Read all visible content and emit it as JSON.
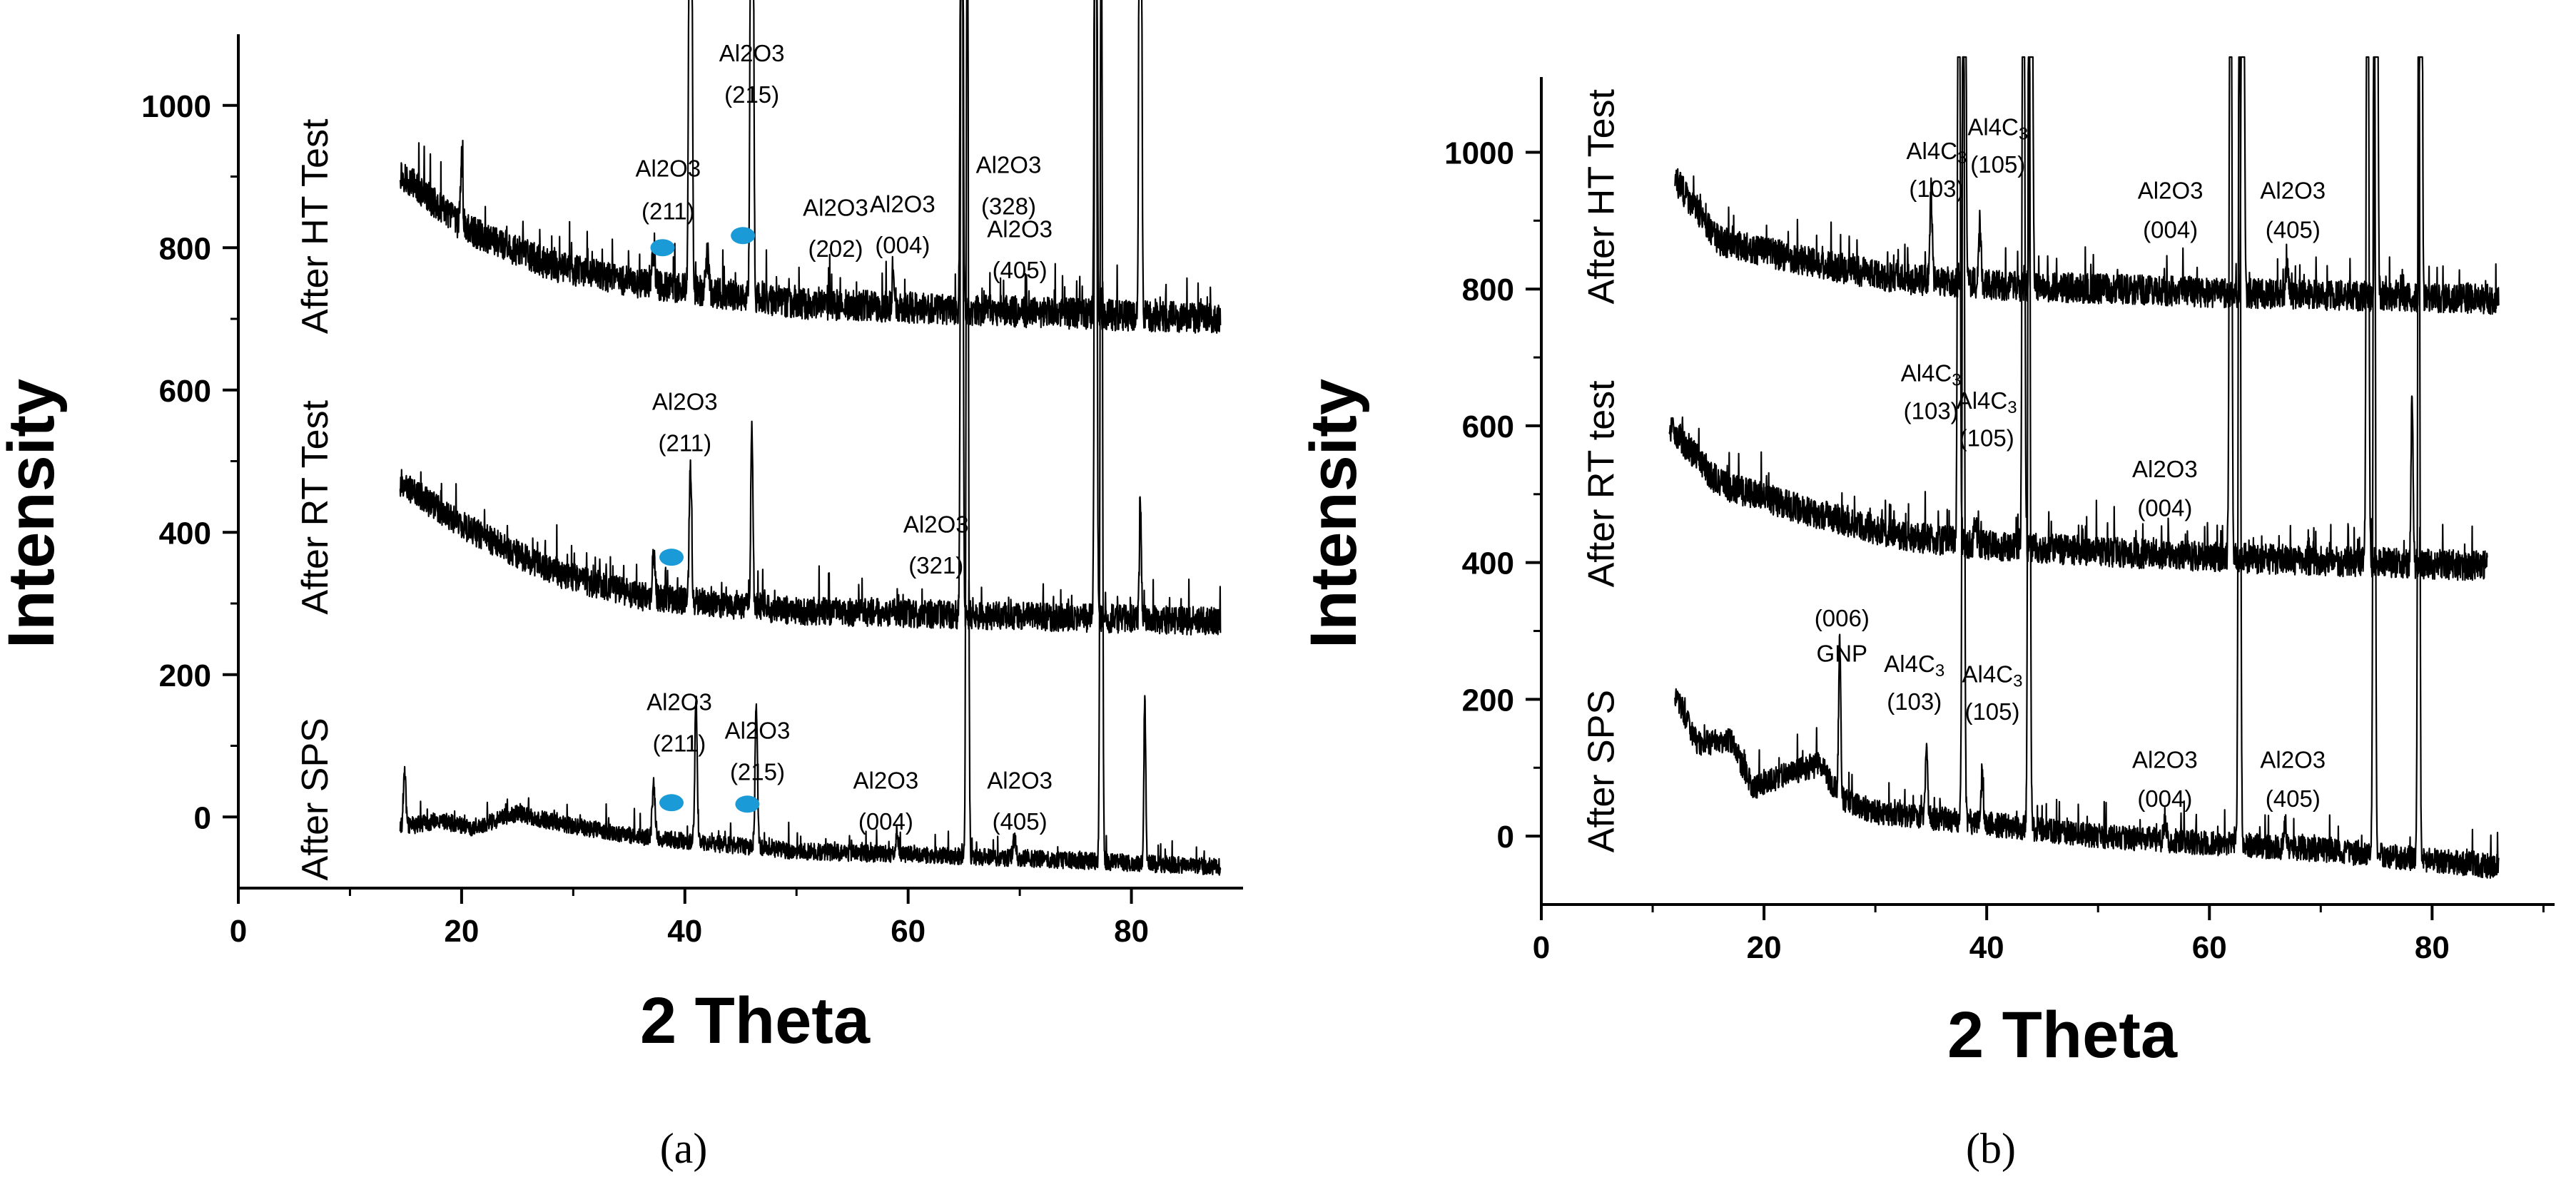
{
  "chart_data": [
    {
      "id": "a",
      "type": "line",
      "panel_label": "(a)",
      "xlabel": "2 Theta",
      "ylabel": "Intensity",
      "xlim": [
        0,
        90
      ],
      "ylim": [
        -100,
        1100
      ],
      "xticks": [
        0,
        20,
        40,
        60,
        80
      ],
      "yticks": [
        0,
        200,
        400,
        600,
        800,
        1000
      ],
      "series": [
        {
          "name": "After HT Test",
          "baseline": [
            [
              14.5,
              905
            ],
            [
              20,
              830
            ],
            [
              28,
              775
            ],
            [
              36,
              750
            ],
            [
              50,
              722
            ],
            [
              70,
              710
            ],
            [
              88,
              700
            ]
          ],
          "noise": 22,
          "start": 14.5,
          "end": 88,
          "peaks": [
            [
              20,
              90,
              0.25
            ],
            [
              37.2,
              50,
              0.3
            ],
            [
              40.5,
              1500,
              0.25
            ],
            [
              42,
              45,
              0.3
            ],
            [
              46,
              1500,
              0.25
            ],
            [
              58.7,
              40,
              0.3
            ],
            [
              64.8,
              1500,
              0.22
            ],
            [
              76.8,
              1500,
              0.22
            ],
            [
              80.8,
              1500,
              0.22
            ]
          ],
          "markers": [
            [
              38,
              800
            ],
            [
              45.2,
              817
            ]
          ]
        },
        {
          "name": "After RT Test",
          "baseline": [
            [
              14.5,
              470
            ],
            [
              20,
              410
            ],
            [
              28,
              345
            ],
            [
              36,
              310
            ],
            [
              50,
              290
            ],
            [
              70,
              282
            ],
            [
              88,
              275
            ]
          ],
          "noise": 20,
          "start": 14.5,
          "end": 88,
          "peaks": [
            [
              37.2,
              60,
              0.3
            ],
            [
              40.5,
              190,
              0.25
            ],
            [
              46,
              260,
              0.22
            ],
            [
              64.8,
              1500,
              0.22
            ],
            [
              76.8,
              1500,
              0.22
            ],
            [
              80.8,
              160,
              0.2
            ]
          ],
          "markers": [
            [
              38.8,
              365
            ]
          ]
        },
        {
          "name": "After SPS",
          "baseline": [
            [
              14.5,
              -15
            ],
            [
              18,
              -5
            ],
            [
              21,
              -15
            ],
            [
              25,
              5
            ],
            [
              29,
              -10
            ],
            [
              36,
              -28
            ],
            [
              50,
              -48
            ],
            [
              70,
              -58
            ],
            [
              88,
              -70
            ]
          ],
          "noise": 12,
          "start": 14.5,
          "end": 88,
          "peaks": [
            [
              14.9,
              80,
              0.25
            ],
            [
              37.2,
              75,
              0.3
            ],
            [
              41,
              200,
              0.25
            ],
            [
              46.4,
              200,
              0.25
            ],
            [
              59,
              30,
              0.3
            ],
            [
              65.3,
              1500,
              0.22
            ],
            [
              69.5,
              25,
              0.3
            ],
            [
              77.3,
              1500,
              0.22
            ],
            [
              81.2,
              230,
              0.2
            ]
          ],
          "markers": [
            [
              38.8,
              20
            ],
            [
              45.6,
              18
            ]
          ]
        }
      ],
      "trace_labels": [
        {
          "text": "After HT Test",
          "x": 8,
          "y": 830
        },
        {
          "text": "After RT Test",
          "x": 8,
          "y": 435
        },
        {
          "text": "After SPS",
          "x": 8,
          "y": 25
        }
      ],
      "annotations": [
        {
          "text": "Al2O3",
          "x": 38.5,
          "y": 900
        },
        {
          "text": "(211)",
          "x": 38.5,
          "y": 840
        },
        {
          "text": "Al2O3",
          "x": 46,
          "y": 1062
        },
        {
          "text": "(215)",
          "x": 46,
          "y": 1004
        },
        {
          "text": "Al2O3",
          "x": 53.5,
          "y": 845
        },
        {
          "text": "(202)",
          "x": 53.5,
          "y": 787
        },
        {
          "text": "Al2O3",
          "x": 59.5,
          "y": 850
        },
        {
          "text": "(004)",
          "x": 59.5,
          "y": 792
        },
        {
          "text": "Al2O3",
          "x": 69,
          "y": 905
        },
        {
          "text": "(328)",
          "x": 69,
          "y": 847
        },
        {
          "text": "Al2O3",
          "x": 70,
          "y": 815
        },
        {
          "text": "(405)",
          "x": 70,
          "y": 757
        },
        {
          "text": "Al2O3",
          "x": 40,
          "y": 572
        },
        {
          "text": "(211)",
          "x": 40,
          "y": 514
        },
        {
          "text": "Al2O3",
          "x": 62.5,
          "y": 400
        },
        {
          "text": "(321)",
          "x": 62.5,
          "y": 342
        },
        {
          "text": "Al2O3",
          "x": 39.5,
          "y": 150
        },
        {
          "text": "(211)",
          "x": 39.5,
          "y": 92
        },
        {
          "text": "Al2O3",
          "x": 46.5,
          "y": 110
        },
        {
          "text": "(215)",
          "x": 46.5,
          "y": 52
        },
        {
          "text": "Al2O3",
          "x": 58,
          "y": 40
        },
        {
          "text": "(004)",
          "x": 58,
          "y": -18
        },
        {
          "text": "Al2O3",
          "x": 70,
          "y": 40
        },
        {
          "text": "(405)",
          "x": 70,
          "y": -18
        }
      ]
    },
    {
      "id": "b",
      "type": "line",
      "panel_label": "(b)",
      "xlabel": "2 Theta",
      "ylabel": "Intensity",
      "xlim": [
        0,
        91
      ],
      "ylim": [
        -100,
        1110
      ],
      "xticks": [
        0,
        20,
        40,
        60,
        80
      ],
      "yticks": [
        0,
        200,
        400,
        600,
        800,
        1000
      ],
      "series": [
        {
          "name": "After HT Test",
          "baseline": [
            [
              12,
              960
            ],
            [
              16,
              870
            ],
            [
              24,
              840
            ],
            [
              32,
              815
            ],
            [
              42,
              805
            ],
            [
              60,
              795
            ],
            [
              86,
              785
            ]
          ],
          "noise": 22,
          "start": 12,
          "end": 86,
          "peaks": [
            [
              35,
              130,
              0.25
            ],
            [
              38,
              1500,
              0.22
            ],
            [
              39.4,
              80,
              0.25
            ],
            [
              44,
              1500,
              0.22
            ],
            [
              63,
              1500,
              0.22
            ],
            [
              67,
              35,
              0.3
            ],
            [
              75,
              1500,
              0.22
            ],
            [
              79,
              1500,
              0.2
            ]
          ]
        },
        {
          "name": "After RT test",
          "baseline": [
            [
              11.5,
              600
            ],
            [
              16,
              515
            ],
            [
              24,
              475
            ],
            [
              32,
              440
            ],
            [
              40,
              425
            ],
            [
              60,
              408
            ],
            [
              85,
              395
            ]
          ],
          "noise": 22,
          "start": 11.5,
          "end": 85,
          "peaks": [
            [
              37.5,
              1500,
              0.22
            ],
            [
              39,
              40,
              0.25
            ],
            [
              43.3,
              1500,
              0.22
            ],
            [
              61.9,
              1500,
              0.22
            ],
            [
              74.2,
              1500,
              0.22
            ],
            [
              78.2,
              250,
              0.2
            ]
          ]
        },
        {
          "name": "After SPS",
          "baseline": [
            [
              12,
              210
            ],
            [
              14,
              135
            ],
            [
              17,
              140
            ],
            [
              19,
              70
            ],
            [
              22,
              90
            ],
            [
              25,
              105
            ],
            [
              27,
              55
            ],
            [
              30,
              35
            ],
            [
              36,
              25
            ],
            [
              50,
              0
            ],
            [
              70,
              -20
            ],
            [
              86,
              -45
            ]
          ],
          "noise": 18,
          "start": 12,
          "end": 86,
          "peaks": [
            [
              26.8,
              230,
              0.22
            ],
            [
              34.6,
              110,
              0.22
            ],
            [
              37.9,
              1500,
              0.22
            ],
            [
              39.6,
              80,
              0.22
            ],
            [
              43.8,
              1500,
              0.22
            ],
            [
              56,
              30,
              0.3
            ],
            [
              62.7,
              1500,
              0.22
            ],
            [
              66.8,
              35,
              0.3
            ],
            [
              74.8,
              1500,
              0.22
            ],
            [
              78.8,
              1500,
              0.2
            ]
          ]
        }
      ],
      "trace_labels": [
        {
          "text": "After HT Test",
          "x": 6.5,
          "y": 935
        },
        {
          "text": "After RT test",
          "x": 6.5,
          "y": 515
        },
        {
          "text": "After SPS",
          "x": 6.5,
          "y": 95
        }
      ],
      "annotations": [
        {
          "text": "Al4C3",
          "x": 35.5,
          "y": 990,
          "sub": true
        },
        {
          "text": "(103)",
          "x": 35.5,
          "y": 935
        },
        {
          "text": "Al4C3",
          "x": 41,
          "y": 1025,
          "sub": true
        },
        {
          "text": "(105)",
          "x": 41,
          "y": 970
        },
        {
          "text": "Al2O3",
          "x": 56.5,
          "y": 932
        },
        {
          "text": "(004)",
          "x": 56.5,
          "y": 875
        },
        {
          "text": "Al2O3",
          "x": 67.5,
          "y": 932
        },
        {
          "text": "(405)",
          "x": 67.5,
          "y": 875
        },
        {
          "text": "Al4C3",
          "x": 35,
          "y": 665,
          "sub": true
        },
        {
          "text": "(103)",
          "x": 35,
          "y": 610
        },
        {
          "text": "Al4C3",
          "x": 40,
          "y": 625,
          "sub": true
        },
        {
          "text": "(105)",
          "x": 40,
          "y": 570
        },
        {
          "text": "Al2O3",
          "x": 56,
          "y": 525
        },
        {
          "text": "(004)",
          "x": 56,
          "y": 468
        },
        {
          "text": "(006)",
          "x": 27,
          "y": 307
        },
        {
          "text": "GNP",
          "x": 27,
          "y": 255
        },
        {
          "text": "Al4C3",
          "x": 33.5,
          "y": 240,
          "sub": true
        },
        {
          "text": "(103)",
          "x": 33.5,
          "y": 185
        },
        {
          "text": "Al4C3",
          "x": 40.5,
          "y": 225,
          "sub": true
        },
        {
          "text": "(105)",
          "x": 40.5,
          "y": 170
        },
        {
          "text": "Al2O3",
          "x": 56,
          "y": 100
        },
        {
          "text": "(004)",
          "x": 56,
          "y": 43
        },
        {
          "text": "Al2O3",
          "x": 67.5,
          "y": 100
        },
        {
          "text": "(405)",
          "x": 67.5,
          "y": 43
        }
      ]
    }
  ],
  "colors": {
    "trace": "#000000",
    "marker": "#1a9ad6",
    "spine": "#000000"
  }
}
